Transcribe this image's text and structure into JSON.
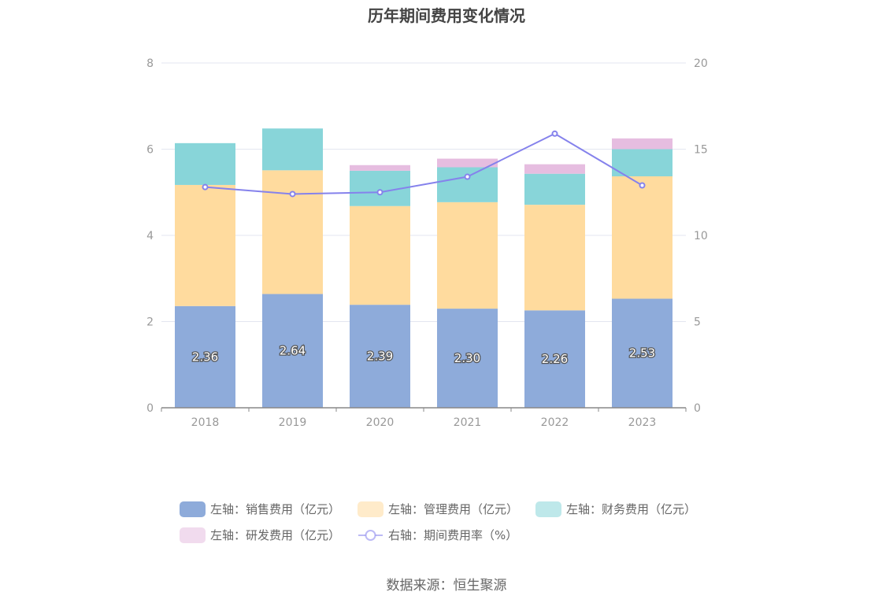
{
  "title": "历年期间费用变化情况",
  "source": "数据来源：恒生聚源",
  "chart_data": {
    "type": "bar",
    "stacked": true,
    "categories": [
      "2018",
      "2019",
      "2020",
      "2021",
      "2022",
      "2023"
    ],
    "left_axis": {
      "ylim": [
        0,
        8
      ],
      "ticks": [
        "0",
        "2",
        "4",
        "6",
        "8"
      ]
    },
    "right_axis": {
      "ylim": [
        0,
        20
      ],
      "ticks": [
        "0",
        "5",
        "10",
        "15",
        "20"
      ]
    },
    "grid": true,
    "legend_position": "bottom",
    "series": [
      {
        "name": "左轴：销售费用（亿元）",
        "axis": "left",
        "type": "bar",
        "color": "#8eabda",
        "values": [
          2.36,
          2.64,
          2.39,
          2.3,
          2.26,
          2.53
        ],
        "labels": [
          "2.36",
          "2.64",
          "2.39",
          "2.30",
          "2.26",
          "2.53"
        ]
      },
      {
        "name": "左轴：管理费用（亿元）",
        "axis": "left",
        "type": "bar",
        "color": "#ffdb9e",
        "values": [
          2.81,
          2.87,
          2.29,
          2.47,
          2.45,
          2.84
        ]
      },
      {
        "name": "左轴：财务费用（亿元）",
        "axis": "left",
        "type": "bar",
        "color": "#88d5d9",
        "values": [
          0.97,
          0.97,
          0.82,
          0.81,
          0.72,
          0.63
        ]
      },
      {
        "name": "左轴：研发费用（亿元）",
        "axis": "left",
        "type": "bar",
        "color": "#e6bde0",
        "values": [
          0,
          0,
          0.13,
          0.2,
          0.22,
          0.25
        ]
      },
      {
        "name": "右轴：期间费用率（%）",
        "axis": "right",
        "type": "line",
        "color": "#8582ec",
        "values": [
          12.8,
          12.4,
          12.5,
          13.4,
          15.9,
          12.9
        ]
      }
    ]
  }
}
